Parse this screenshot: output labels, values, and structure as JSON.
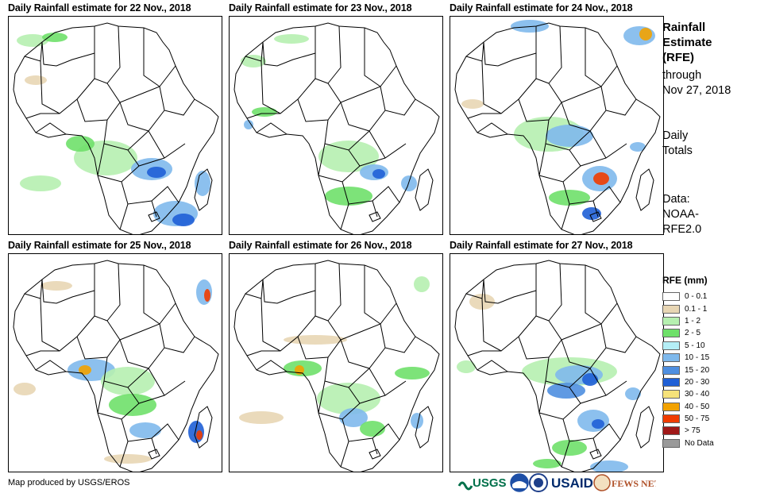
{
  "panels": [
    {
      "title": "Daily Rainfall estimate for 22 Nov., 2018"
    },
    {
      "title": "Daily Rainfall estimate for 23 Nov., 2018"
    },
    {
      "title": "Daily Rainfall estimate for 24 Nov., 2018"
    },
    {
      "title": "Daily Rainfall estimate for 25 Nov., 2018"
    },
    {
      "title": "Daily Rainfall estimate for 26 Nov., 2018"
    },
    {
      "title": "Daily Rainfall estimate for 27 Nov., 2018"
    }
  ],
  "side": {
    "title_lines": [
      "Rainfall",
      "Estimate",
      "(RFE)"
    ],
    "through_lines": [
      "through",
      "Nov 27, 2018"
    ],
    "totals_lines": [
      "Daily",
      "Totals"
    ],
    "data_lines": [
      "Data:",
      "NOAA-",
      "RFE2.0"
    ]
  },
  "legend": {
    "title": "RFE (mm)",
    "items": [
      {
        "label": "0 - 0.1",
        "color": "#ffffff"
      },
      {
        "label": "0.1 - 1",
        "color": "#e8d6b4"
      },
      {
        "label": "1 - 2",
        "color": "#b6f0b0"
      },
      {
        "label": "2 - 5",
        "color": "#6fe06a"
      },
      {
        "label": "5 - 10",
        "color": "#b4eef6"
      },
      {
        "label": "10 - 15",
        "color": "#7fb9ec"
      },
      {
        "label": "15 - 20",
        "color": "#4f8fe0"
      },
      {
        "label": "20 - 30",
        "color": "#1f5fd6"
      },
      {
        "label": "30 - 40",
        "color": "#f6e27a"
      },
      {
        "label": "40 - 50",
        "color": "#f2a200"
      },
      {
        "label": "50 - 75",
        "color": "#f03c00"
      },
      {
        "label": "> 75",
        "color": "#a01818"
      },
      {
        "label": "No Data",
        "color": "#9a9a9a"
      }
    ]
  },
  "credit": "Map produced by USGS/EROS",
  "logos": {
    "usgs": "USGS",
    "usaid": "USAID",
    "fewsnet": "FEWS NET"
  }
}
